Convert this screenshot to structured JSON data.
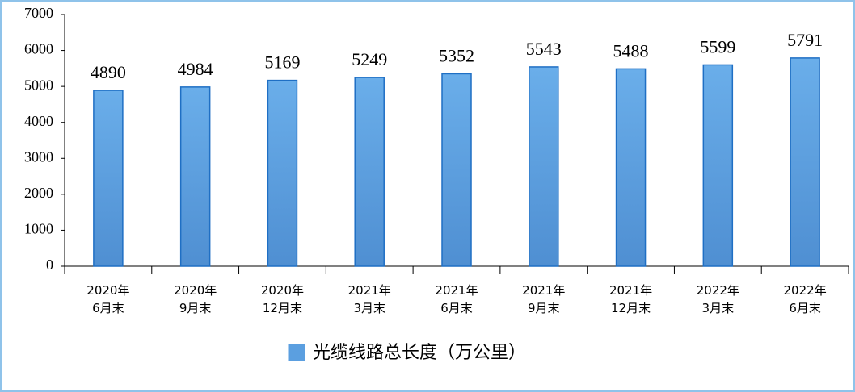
{
  "chart_data": {
    "type": "bar",
    "categories": [
      "2020年\n6月末",
      "2020年\n9月末",
      "2020年\n12月末",
      "2021年\n3月末",
      "2021年\n6月末",
      "2021年\n9月末",
      "2021年\n12月末",
      "2022年\n3月末",
      "2022年\n6月末"
    ],
    "series": [
      {
        "name": "光缆线路总长度（万公里）",
        "color": "#5b9fe0",
        "values": [
          4890,
          4984,
          5169,
          5249,
          5352,
          5543,
          5488,
          5599,
          5791
        ]
      }
    ],
    "ylim": [
      0,
      7000
    ],
    "yticks": [
      0,
      1000,
      2000,
      3000,
      4000,
      5000,
      6000,
      7000
    ],
    "grid": false
  }
}
